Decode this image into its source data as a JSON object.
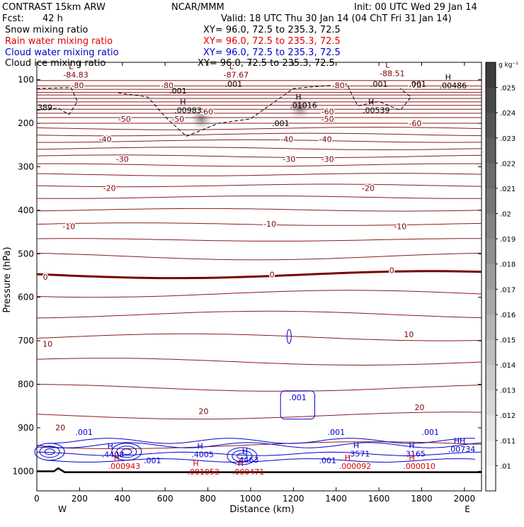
{
  "header": {
    "model": "CONTRAST 15km ARW",
    "org": "NCAR/MMM",
    "init": "Init: 00 UTC Wed 29 Jan 14",
    "fcst_label": "Fcst:",
    "fcst_value": "42 h",
    "valid": "Valid: 18 UTC Thu 30 Jan 14 (04 ChT Fri 31 Jan 14)"
  },
  "fields": [
    {
      "name": "Snow mixing ratio",
      "xy": "XY=  96.0, 72.5 to 235.3, 72.5",
      "color": "#000000"
    },
    {
      "name": "Rain water mixing ratio",
      "xy": "XY=  96.0, 72.5 to 235.3, 72.5",
      "color": "#dd0000"
    },
    {
      "name": "Cloud water mixing ratio",
      "xy": "XY=  96.0, 72.5 to 235.3, 72.5",
      "color": "#0000cc"
    },
    {
      "name": "Cloud ice mixing ratio",
      "xy": "XY=  96.0, 72.5 to 235.3, 72.5",
      "color": "#000000"
    }
  ],
  "colorbar": {
    "unit": "g kg⁻¹",
    "ticks": [
      ".025",
      ".024",
      ".023",
      ".022",
      ".021",
      ".02",
      ".019",
      ".018",
      ".017",
      ".016",
      ".015",
      ".014",
      ".013",
      ".012",
      ".011",
      ".01"
    ]
  },
  "chart_data": {
    "type": "contour",
    "xlabel": "Distance (km)",
    "ylabel": "Pressure (hPa)",
    "xlim": [
      0,
      2080
    ],
    "ylim": [
      1045,
      60
    ],
    "x_ticks": [
      0,
      200,
      400,
      600,
      800,
      1000,
      1200,
      1400,
      1600,
      1800,
      2000
    ],
    "y_ticks": [
      100,
      200,
      300,
      400,
      500,
      600,
      700,
      800,
      900,
      1000
    ],
    "x_end_labels": {
      "left": "W",
      "right": "E"
    },
    "temperature_labels": [
      {
        "x": 190,
        "p": 113,
        "text": "-80"
      },
      {
        "x": 610,
        "p": 113,
        "text": "-80"
      },
      {
        "x": 1410,
        "p": 113,
        "text": "-80"
      },
      {
        "x": 1770,
        "p": 113,
        "text": "-70"
      },
      {
        "x": 795,
        "p": 173,
        "text": "-60"
      },
      {
        "x": 1360,
        "p": 173,
        "text": "-60"
      },
      {
        "x": 1770,
        "p": 200,
        "text": "-60"
      },
      {
        "x": 410,
        "p": 190,
        "text": "-50"
      },
      {
        "x": 660,
        "p": 190,
        "text": "-50"
      },
      {
        "x": 1360,
        "p": 190,
        "text": "-50"
      },
      {
        "x": 320,
        "p": 237,
        "text": "-40"
      },
      {
        "x": 1170,
        "p": 237,
        "text": "-40"
      },
      {
        "x": 1350,
        "p": 237,
        "text": "-40"
      },
      {
        "x": 400,
        "p": 282,
        "text": "-30"
      },
      {
        "x": 1180,
        "p": 282,
        "text": "-30"
      },
      {
        "x": 1360,
        "p": 282,
        "text": "-30"
      },
      {
        "x": 340,
        "p": 349,
        "text": "-20"
      },
      {
        "x": 1550,
        "p": 349,
        "text": "-20"
      },
      {
        "x": 150,
        "p": 437,
        "text": "-10"
      },
      {
        "x": 1090,
        "p": 431,
        "text": "-10"
      },
      {
        "x": 1700,
        "p": 437,
        "text": "-10"
      },
      {
        "x": 40,
        "p": 553,
        "text": "0"
      },
      {
        "x": 1100,
        "p": 548,
        "text": "0"
      },
      {
        "x": 1660,
        "p": 538,
        "text": "0"
      },
      {
        "x": 50,
        "p": 707,
        "text": "10"
      },
      {
        "x": 1740,
        "p": 685,
        "text": "10"
      },
      {
        "x": 780,
        "p": 862,
        "text": "20"
      },
      {
        "x": 110,
        "p": 899,
        "text": "20"
      },
      {
        "x": 1790,
        "p": 853,
        "text": "20"
      }
    ],
    "extrema_labels": [
      {
        "x": 150,
        "p": 85,
        "kind": "L",
        "value": "-84.83"
      },
      {
        "x": 900,
        "p": 85,
        "kind": "L",
        "value": "-87.67"
      },
      {
        "x": 1630,
        "p": 82,
        "kind": "L",
        "value": "-88.51"
      },
      {
        "x": 670,
        "p": 167,
        "kind": "H",
        "value": ".00983"
      },
      {
        "x": 1210,
        "p": 155,
        "kind": "H",
        "value": ".01016"
      },
      {
        "x": 1550,
        "p": 167,
        "kind": "H",
        "value": ".00539"
      },
      {
        "x": 1910,
        "p": 110,
        "kind": "H",
        "value": ".00486"
      },
      {
        "x": 330,
        "p": 958,
        "kind": "H",
        "value": ".4408"
      },
      {
        "x": 750,
        "p": 958,
        "kind": "H",
        "value": ".4005"
      },
      {
        "x": 960,
        "p": 970,
        "kind": "H",
        "value": ".4463"
      },
      {
        "x": 1480,
        "p": 956,
        "kind": "H",
        "value": ".3571"
      },
      {
        "x": 1740,
        "p": 956,
        "kind": "H",
        "value": ".3165"
      },
      {
        "x": 1950,
        "p": 946,
        "kind": "HH",
        "value": ".00734"
      },
      {
        "x": 360,
        "p": 985,
        "kind": "H",
        "value": ".000943"
      },
      {
        "x": 730,
        "p": 998,
        "kind": "H",
        "value": ".001053"
      },
      {
        "x": 940,
        "p": 998,
        "kind": "H",
        "value": ".000471"
      },
      {
        "x": 1440,
        "p": 985,
        "kind": "H",
        "value": ".000092"
      },
      {
        "x": 1740,
        "p": 985,
        "kind": "H",
        "value": ".000010"
      }
    ],
    "contour_value_labels": [
      {
        "x": 620,
        "p": 125,
        "text": ".001",
        "color": "black"
      },
      {
        "x": 880,
        "p": 110,
        "text": ".001",
        "color": "black"
      },
      {
        "x": 1100,
        "p": 200,
        "text": ".001",
        "color": "black"
      },
      {
        "x": 1560,
        "p": 110,
        "text": ".001",
        "color": "black"
      },
      {
        "x": 1740,
        "p": 110,
        "text": ".001",
        "color": "black"
      },
      {
        "x": 0,
        "p": 163,
        "text": "389",
        "color": "black"
      },
      {
        "x": 180,
        "p": 910,
        "text": ".001",
        "color": "blue"
      },
      {
        "x": 500,
        "p": 975,
        "text": ".001",
        "color": "blue"
      },
      {
        "x": 1180,
        "p": 830,
        "text": ".001",
        "color": "blue"
      },
      {
        "x": 1320,
        "p": 975,
        "text": ".001",
        "color": "blue"
      },
      {
        "x": 1360,
        "p": 910,
        "text": ".001",
        "color": "blue"
      },
      {
        "x": 1800,
        "p": 910,
        "text": ".001",
        "color": "blue"
      }
    ],
    "shaded_maxima": [
      {
        "x": 770,
        "p": 190,
        "value": 0.011
      },
      {
        "x": 1230,
        "p": 165,
        "value": 0.012
      }
    ]
  }
}
